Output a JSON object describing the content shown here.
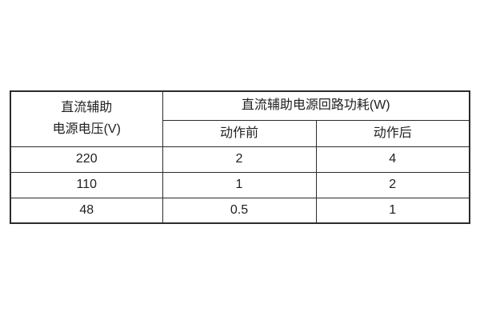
{
  "table": {
    "header": {
      "voltage_line1": "直流辅助",
      "voltage_line2": "电源电压(V)",
      "power_group": "直流辅助电源回路功耗(W)",
      "before_action": "动作前",
      "after_action": "动作后"
    },
    "rows": [
      {
        "voltage": "220",
        "before": "2",
        "after": "4"
      },
      {
        "voltage": "110",
        "before": "1",
        "after": "2"
      },
      {
        "voltage": "48",
        "before": "0.5",
        "after": "1"
      }
    ],
    "colors": {
      "border": "#2b2b2b",
      "text": "#1f1f1f",
      "background": "#ffffff"
    }
  }
}
